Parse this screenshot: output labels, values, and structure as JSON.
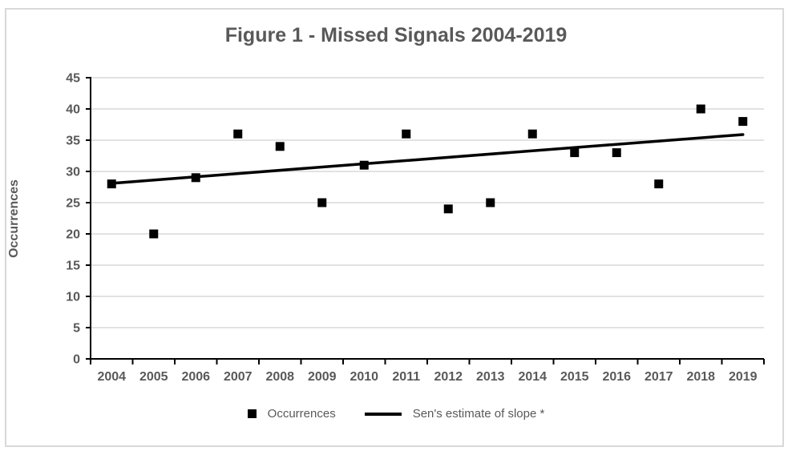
{
  "chart_data": {
    "type": "scatter",
    "title": "Figure 1 - Missed Signals 2004-2019",
    "xlabel": "",
    "ylabel": "Occurrences",
    "categories": [
      "2004",
      "2005",
      "2006",
      "2007",
      "2008",
      "2009",
      "2010",
      "2011",
      "2012",
      "2013",
      "2014",
      "2015",
      "2016",
      "2017",
      "2018",
      "2019"
    ],
    "series": [
      {
        "name": "Occurrences",
        "type": "scatter",
        "marker": "square",
        "color": "#000000",
        "values": [
          28,
          20,
          29,
          36,
          34,
          25,
          31,
          36,
          24,
          25,
          36,
          33,
          33,
          28,
          40,
          38
        ]
      },
      {
        "name": "Sen's estimate of slope *",
        "type": "line",
        "color": "#000000",
        "points": [
          {
            "x": "2004",
            "y": 28.1
          },
          {
            "x": "2019",
            "y": 35.9
          }
        ]
      }
    ],
    "ylim": [
      0,
      45
    ],
    "yticks": [
      0,
      5,
      10,
      15,
      20,
      25,
      30,
      35,
      40,
      45
    ],
    "grid": "horizontal",
    "legend_position": "bottom"
  },
  "legend": {
    "occurrences_label": "Occurrences",
    "trend_label": "Sen's estimate of slope *"
  },
  "colors": {
    "text": "#595959",
    "gridline": "#d9d9d9",
    "axis": "#000000",
    "marker": "#000000",
    "trend_line": "#000000",
    "chart_border": "#d9d9d9",
    "background": "#ffffff"
  }
}
